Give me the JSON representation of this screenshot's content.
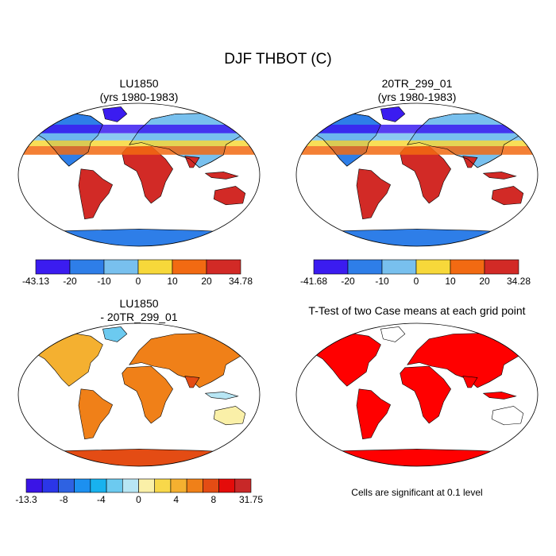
{
  "title": "DJF THBOT (C)",
  "note": "Cells are significant at 0.1 level",
  "colors": {
    "ramp6": [
      "#3b1cf0",
      "#2e7ee8",
      "#78c0ee",
      "#f7d83a",
      "#f26a12",
      "#d22a26"
    ],
    "ramp14": [
      "#3a14e6",
      "#2b36e8",
      "#2e62e2",
      "#1c90f0",
      "#18b2ee",
      "#6ccaf0",
      "#b8e6f4",
      "#faf0a8",
      "#f8d84a",
      "#f4b030",
      "#f08018",
      "#e44c14",
      "#e40c0a",
      "#c82828"
    ],
    "ttest": "#ff0000",
    "land_outline": "#000000"
  },
  "chart_data": [
    {
      "type": "map",
      "title_line1": "LU1850",
      "title_line2": "(yrs 1980-1983)",
      "colorbar": {
        "min_label": "-43.13",
        "max_label": "34.78",
        "levels": [
          "-20",
          "-10",
          "0",
          "10",
          "20"
        ],
        "min": -43.13,
        "max": 34.78
      }
    },
    {
      "type": "map",
      "title_line1": "20TR_299_01",
      "title_line2": "(yrs 1980-1983)",
      "colorbar": {
        "min_label": "-41.68",
        "max_label": "34.28",
        "levels": [
          "-20",
          "-10",
          "0",
          "10",
          "20"
        ],
        "min": -41.68,
        "max": 34.28
      }
    },
    {
      "type": "map",
      "title_line1": "LU1850",
      "title_line2": "- 20TR_299_01",
      "colorbar": {
        "min_label": "-13.3",
        "max_label": "31.75",
        "levels": [
          "-8",
          "-4",
          "0",
          "4",
          "8"
        ],
        "min": -13.3,
        "max": 31.75
      }
    },
    {
      "type": "map",
      "title_line1": "T-Test of two Case means at each grid point"
    }
  ]
}
